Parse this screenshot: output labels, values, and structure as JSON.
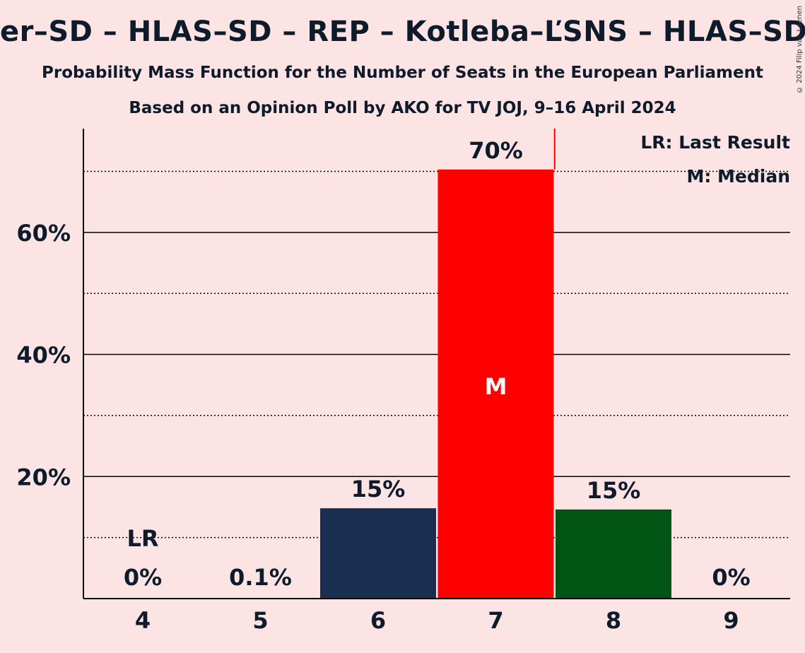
{
  "page": {
    "title": "er–SD – HLAS–SD – REP – Kotleba–ĽSNS – HLAS–SD–",
    "subtitle1": "Probability Mass Function for the Number of Seats in the European Parliament",
    "subtitle2": "Based on an Opinion Poll by AKO for TV JOJ, 9–16 April 2024",
    "copyright": "© 2024 Filip van Laenen"
  },
  "chart_data": {
    "type": "bar",
    "categories": [
      "4",
      "5",
      "6",
      "7",
      "8",
      "9"
    ],
    "values": [
      0,
      0.1,
      14.8,
      70.3,
      14.6,
      0
    ],
    "value_labels": [
      "0%",
      "0.1%",
      "15%",
      "70%",
      "15%",
      "0%"
    ],
    "bar_colors": [
      "#1a2e50",
      "#1a2e50",
      "#1a2e50",
      "#ff0000",
      "#005515",
      "#1a2e50"
    ],
    "ylim": [
      0,
      77
    ],
    "yticks": [
      20,
      40,
      60
    ],
    "ytick_labels": [
      "20%",
      "40%",
      "60%"
    ],
    "minor_gridlines": [
      10,
      30,
      50,
      70
    ],
    "last_result_category": "4",
    "last_result_label": "LR",
    "median_category": "7",
    "median_label": "M",
    "legend": {
      "lr": "LR: Last Result",
      "median": "M: Median",
      "position": "top-right"
    }
  }
}
